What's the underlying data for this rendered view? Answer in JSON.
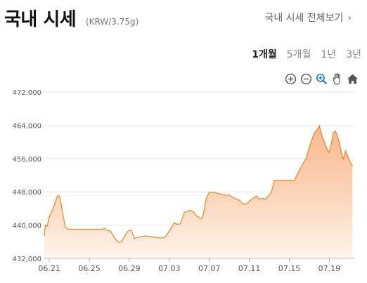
{
  "header": {
    "title": "국내 시세",
    "unit": "(KRW/3.75g)",
    "all_link": "국내 시세 전체보기"
  },
  "periods": [
    {
      "label": "1개월",
      "active": true
    },
    {
      "label": "5개월",
      "active": false
    },
    {
      "label": "1년",
      "active": false
    },
    {
      "label": "3년",
      "active": false
    }
  ],
  "toolbar": {
    "icons": [
      "zoom-in-icon",
      "zoom-out-icon",
      "zoom-reset-icon",
      "pan-hand-icon",
      "home-icon"
    ]
  },
  "colors": {
    "line": "#f08a2c",
    "fill_top": "#f6a46a",
    "fill_bottom": "#fff3ea",
    "grid": "#e6e6e6"
  },
  "chart_data": {
    "type": "area",
    "title": "",
    "xlabel": "",
    "ylabel": "",
    "ylim": [
      432000,
      472000
    ],
    "yticks": [
      432000,
      440000,
      448000,
      456000,
      464000,
      472000
    ],
    "ytick_labels": [
      "432,000",
      "440,000",
      "448,000",
      "456,000",
      "464,000",
      "472,000"
    ],
    "x_tick_labels": [
      "06.21",
      "06.25",
      "06.29",
      "07.03",
      "07.07",
      "07.11",
      "07.15",
      "07.19"
    ],
    "x_tick_positions": [
      0.5,
      4.5,
      8.5,
      12.5,
      16.5,
      20.5,
      24.5,
      28.5
    ],
    "xlim": [
      0,
      31
    ],
    "grid": true,
    "series": [
      {
        "x": [
          0,
          0.1,
          0.3,
          0.5,
          0.8,
          1.1,
          1.3,
          1.5,
          1.7,
          1.9,
          2.1,
          2.4,
          2.6,
          3.0,
          4.0,
          5.0,
          5.5,
          5.8,
          6.0,
          6.3,
          6.6,
          6.9,
          7.2,
          7.5,
          7.8,
          8.1,
          8.4,
          8.7,
          9.0,
          9.3,
          9.6,
          10.0,
          10.5,
          11.0,
          11.5,
          12.0,
          12.3,
          12.6,
          13.0,
          13.3,
          13.6,
          14.0,
          14.3,
          14.6,
          14.9,
          15.2,
          15.5,
          15.8,
          16.0,
          16.2,
          16.5,
          17.0,
          17.5,
          18.0,
          18.5,
          18.8,
          19.2,
          19.5,
          19.8,
          20.0,
          20.3,
          20.6,
          20.9,
          21.2,
          21.5,
          21.8,
          22.1,
          22.4,
          22.7,
          23.0,
          23.5,
          24.0,
          24.5,
          25.0,
          25.3,
          25.6,
          25.9,
          26.2,
          26.5,
          26.8,
          27.1,
          27.3,
          27.5,
          27.7,
          27.9,
          28.1,
          28.3,
          28.5,
          28.7,
          28.9,
          29.1,
          29.3,
          29.5,
          29.7,
          29.9,
          30.1,
          30.3,
          30.5,
          30.8
        ],
        "y": [
          437500,
          440000,
          439800,
          442000,
          443500,
          445500,
          447000,
          447000,
          445000,
          442000,
          439500,
          439000,
          439000,
          439000,
          439000,
          439000,
          439000,
          439000,
          439200,
          438700,
          438600,
          437500,
          436300,
          435800,
          436300,
          437600,
          438600,
          438800,
          436800,
          437000,
          437200,
          437400,
          437300,
          437100,
          436900,
          437000,
          437800,
          439000,
          440500,
          440200,
          440300,
          443000,
          443300,
          443600,
          443200,
          442300,
          441800,
          441600,
          443800,
          446500,
          447900,
          447800,
          447600,
          447200,
          447200,
          446800,
          446300,
          446000,
          445200,
          445000,
          445300,
          446000,
          446400,
          447000,
          446300,
          446400,
          446200,
          447000,
          447900,
          450800,
          450800,
          450800,
          450800,
          450800,
          452200,
          453600,
          454900,
          456100,
          458800,
          460900,
          462500,
          463000,
          463900,
          462000,
          460600,
          459500,
          458000,
          457500,
          459600,
          462200,
          462600,
          461500,
          459900,
          457400,
          455800,
          457800,
          456900,
          455600,
          454200
        ]
      }
    ]
  }
}
